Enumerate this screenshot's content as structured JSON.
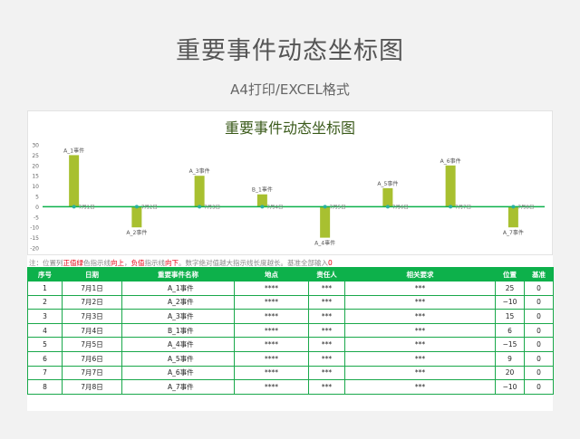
{
  "page": {
    "title": "重要事件动态坐标图",
    "subtitle": "A4打印/EXCEL格式"
  },
  "chart_data": {
    "type": "bar",
    "title": "重要事件动态坐标图",
    "categories": [
      "7月1日",
      "7月2日",
      "7月3日",
      "7月4日",
      "7月5日",
      "7月6日",
      "7月7日",
      "7月8日"
    ],
    "event_labels": [
      "A_1事件",
      "A_2事件",
      "A_3事件",
      "B_1事件",
      "A_4事件",
      "A_5事件",
      "A_6事件",
      "A_7事件"
    ],
    "values": [
      25,
      -10,
      15,
      6,
      -15,
      9,
      20,
      -10
    ],
    "yticks": [
      30,
      25,
      20,
      15,
      10,
      5,
      0,
      -5,
      -10,
      -15,
      -20
    ],
    "ylim": [
      -20,
      30
    ],
    "bar_color": "#a8c030",
    "axis_line_color": "#0db14b",
    "marker_color": "#2ab0a0",
    "title_color": "#3a5a1a"
  },
  "note": {
    "p1": "注：位置列",
    "p2": "正值",
    "p3": "绿",
    "p4": "色指示线",
    "p5": "向上",
    "p6": "，",
    "p7": "负值",
    "p8": "指示线",
    "p9": "向下",
    "p10": "。数字绝对值越大指示线长度越长。基准全部输入",
    "p11": "0"
  },
  "table": {
    "headers": [
      "序号",
      "日期",
      "重要事件名称",
      "地点",
      "责任人",
      "相关要求",
      "位置",
      "基准"
    ],
    "rows": [
      [
        "1",
        "7月1日",
        "A_1事件",
        "****",
        "***",
        "***",
        "25",
        "0"
      ],
      [
        "2",
        "7月2日",
        "A_2事件",
        "****",
        "***",
        "***",
        "−10",
        "0"
      ],
      [
        "3",
        "7月3日",
        "A_3事件",
        "****",
        "***",
        "***",
        "15",
        "0"
      ],
      [
        "4",
        "7月4日",
        "B_1事件",
        "****",
        "***",
        "***",
        "6",
        "0"
      ],
      [
        "5",
        "7月5日",
        "A_4事件",
        "****",
        "***",
        "***",
        "−15",
        "0"
      ],
      [
        "6",
        "7月6日",
        "A_5事件",
        "****",
        "***",
        "***",
        "9",
        "0"
      ],
      [
        "7",
        "7月7日",
        "A_6事件",
        "****",
        "***",
        "***",
        "20",
        "0"
      ],
      [
        "8",
        "7月8日",
        "A_7事件",
        "****",
        "***",
        "***",
        "−10",
        "0"
      ]
    ]
  }
}
